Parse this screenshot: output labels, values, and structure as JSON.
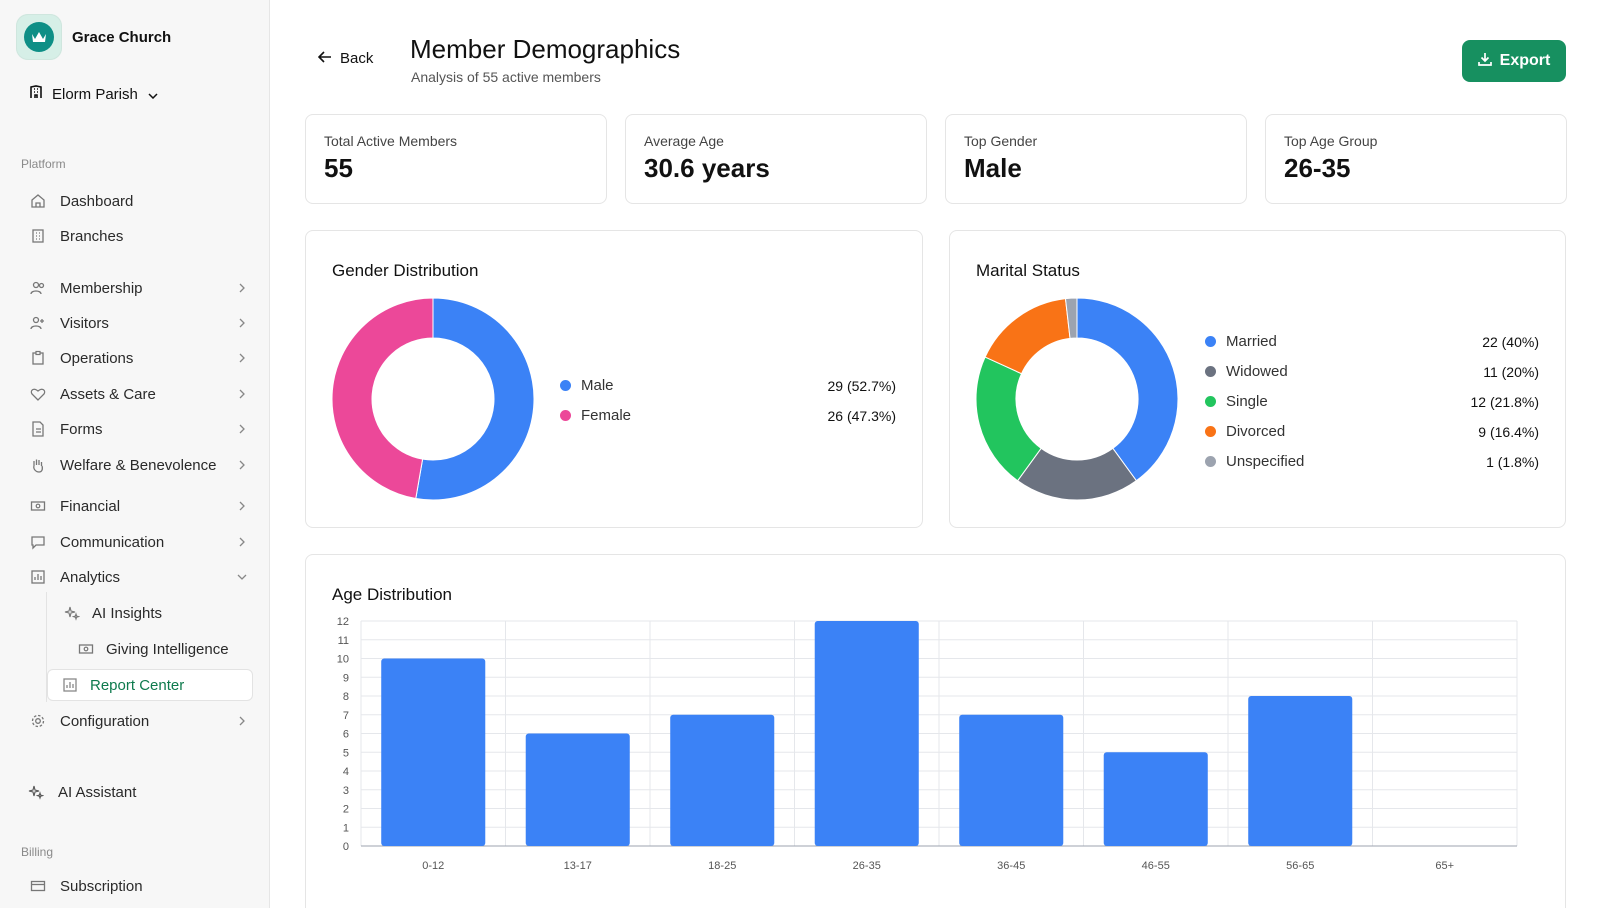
{
  "sidebar": {
    "brand": "Grace Church",
    "parish": "Elorm Parish",
    "platform_label": "Platform",
    "billing_label": "Billing",
    "items": [
      {
        "label": "Dashboard"
      },
      {
        "label": "Branches"
      },
      {
        "label": "Membership"
      },
      {
        "label": "Visitors"
      },
      {
        "label": "Operations"
      },
      {
        "label": "Assets & Care"
      },
      {
        "label": "Forms"
      },
      {
        "label": "Welfare & Benevolence"
      },
      {
        "label": "Financial"
      },
      {
        "label": "Communication"
      },
      {
        "label": "Analytics"
      },
      {
        "label": "Configuration"
      }
    ],
    "analytics_sub": [
      {
        "label": "AI Insights"
      },
      {
        "label": "Giving Intelligence"
      },
      {
        "label": "Report Center"
      }
    ],
    "ai_assistant": "AI Assistant",
    "subscription": "Subscription"
  },
  "header": {
    "back": "Back",
    "title": "Member Demographics",
    "subtitle": "Analysis of 55 active members",
    "export": "Export"
  },
  "stats": [
    {
      "label": "Total Active Members",
      "value": "55"
    },
    {
      "label": "Average Age",
      "value": "30.6 years"
    },
    {
      "label": "Top Gender",
      "value": "Male"
    },
    {
      "label": "Top Age Group",
      "value": "26-35"
    }
  ],
  "colors": {
    "accent": "#179060",
    "blue": "#3b82f6",
    "pink": "#ec4899",
    "gray": "#6b7280",
    "green": "#22c55e",
    "orange": "#f97316",
    "lightgray": "#9ca3af"
  },
  "chart_data": [
    {
      "type": "pie",
      "title": "Gender Distribution",
      "series": [
        {
          "name": "Male",
          "value": 29,
          "label": "29 (52.7%)",
          "color": "#3b82f6"
        },
        {
          "name": "Female",
          "value": 26,
          "label": "26 (47.3%)",
          "color": "#ec4899"
        }
      ]
    },
    {
      "type": "pie",
      "title": "Marital Status",
      "series": [
        {
          "name": "Married",
          "value": 22,
          "label": "22 (40%)",
          "color": "#3b82f6"
        },
        {
          "name": "Widowed",
          "value": 11,
          "label": "11 (20%)",
          "color": "#6b7280"
        },
        {
          "name": "Single",
          "value": 12,
          "label": "12 (21.8%)",
          "color": "#22c55e"
        },
        {
          "name": "Divorced",
          "value": 9,
          "label": "9 (16.4%)",
          "color": "#f97316"
        },
        {
          "name": "Unspecified",
          "value": 1,
          "label": "1 (1.8%)",
          "color": "#9ca3af"
        }
      ]
    },
    {
      "type": "bar",
      "title": "Age Distribution",
      "categories": [
        "0-12",
        "13-17",
        "18-25",
        "26-35",
        "36-45",
        "46-55",
        "56-65",
        "65+"
      ],
      "values": [
        10,
        6,
        7,
        12,
        7,
        5,
        8,
        0
      ],
      "ylim": [
        0,
        12
      ],
      "yticks": [
        0,
        1,
        2,
        3,
        4,
        5,
        6,
        7,
        8,
        9,
        10,
        11,
        12
      ],
      "grid": true,
      "color": "#3b82f6"
    }
  ]
}
